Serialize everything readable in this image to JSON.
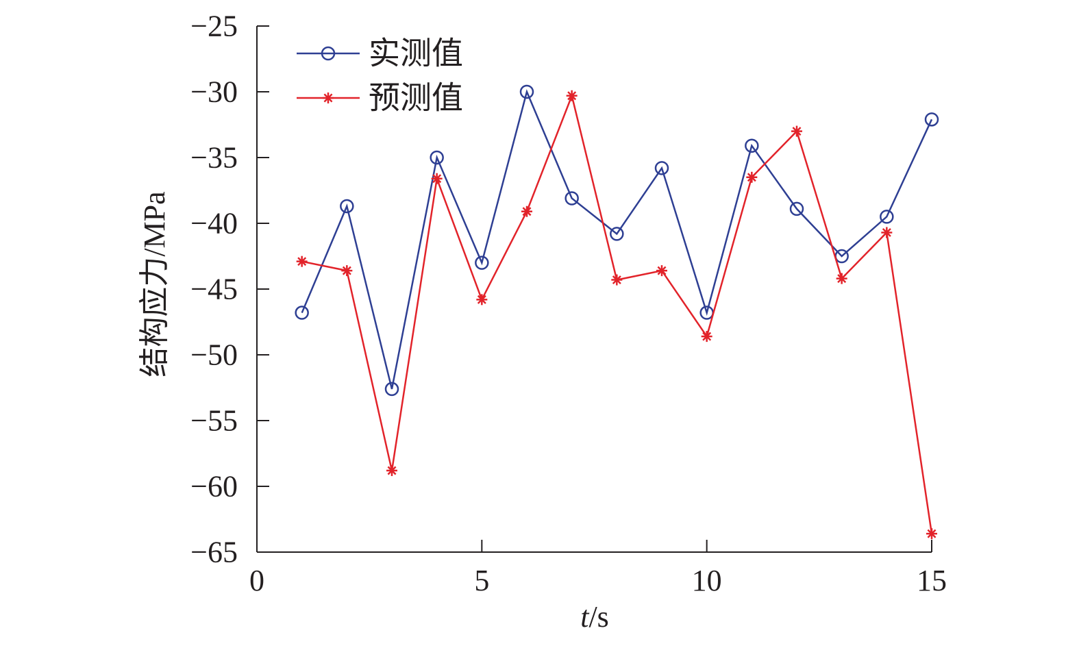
{
  "chart_data": {
    "type": "line",
    "xlabel_var": "t",
    "xlabel_unit": "/s",
    "ylabel": "结构应力/MPa",
    "xlim": [
      0,
      15
    ],
    "ylim": [
      -65,
      -25
    ],
    "xticks": [
      0,
      5,
      10,
      15
    ],
    "yticks": [
      -25,
      -30,
      -35,
      -40,
      -45,
      -50,
      -55,
      -60,
      -65
    ],
    "ytick_labels": [
      "−25",
      "−30",
      "−35",
      "−40",
      "−45",
      "−50",
      "−55",
      "−60",
      "−65"
    ],
    "grid": false,
    "legend_position": "top-left",
    "x": [
      1,
      2,
      3,
      4,
      5,
      6,
      7,
      8,
      9,
      10,
      11,
      12,
      13,
      14,
      15
    ],
    "series": [
      {
        "name": "实测值",
        "marker": "circle",
        "color": "#2e3f93",
        "values": [
          -46.8,
          -38.7,
          -52.6,
          -35.0,
          -43.0,
          -30.0,
          -38.1,
          -40.8,
          -35.8,
          -46.8,
          -34.1,
          -38.9,
          -42.5,
          -39.5,
          -32.1
        ]
      },
      {
        "name": "预测值",
        "marker": "asterisk",
        "color": "#e2232a",
        "values": [
          -42.9,
          -43.6,
          -58.8,
          -36.6,
          -45.8,
          -39.1,
          -30.3,
          -44.3,
          -43.6,
          -48.6,
          -36.5,
          -33.0,
          -44.2,
          -40.7,
          -63.6
        ]
      }
    ]
  }
}
